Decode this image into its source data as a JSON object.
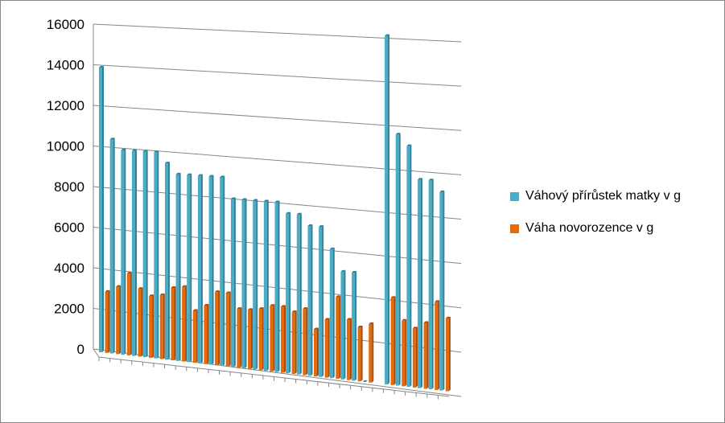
{
  "chart_data": {
    "type": "bar",
    "title": "",
    "xlabel": "",
    "ylabel": "",
    "ylim": [
      0,
      16000
    ],
    "yticks": [
      "0",
      "2000",
      "4000",
      "6000",
      "8000",
      "10000",
      "12000",
      "14000",
      "16000"
    ],
    "grid": true,
    "legend": "right",
    "series": [
      {
        "name": "Váhový přírůstek matky v g",
        "color": "#4BACC6",
        "values": [
          14000,
          10500,
          10000,
          10000,
          10000,
          10000,
          9500,
          9000,
          9000,
          9000,
          9000,
          9000,
          8000,
          8000,
          8000,
          8000,
          8000,
          7500,
          7500,
          7000,
          7000,
          6000,
          5000,
          5000,
          0,
          null,
          16000,
          11500,
          11000,
          9500,
          9500,
          9000
        ]
      },
      {
        "name": "Váha novorozence v g",
        "color": "#E36C0A",
        "values": [
          3000,
          3300,
          4000,
          3300,
          3000,
          3100,
          3500,
          3600,
          2500,
          2800,
          3500,
          3500,
          2800,
          2800,
          2900,
          3100,
          3100,
          2900,
          3100,
          2200,
          2700,
          3800,
          2800,
          2500,
          2700,
          null,
          4000,
          3000,
          2700,
          3000,
          4000,
          3300
        ]
      }
    ]
  }
}
